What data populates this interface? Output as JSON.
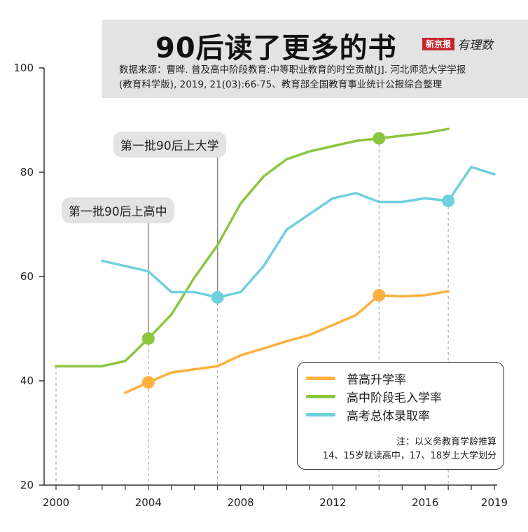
{
  "header": {
    "title": "90后读了更多的书",
    "source_line1": "数据来源：曹晔. 普及高中阶段教育:中等职业教育的时空贡献[J]. 河北师范大学学报",
    "source_line2": "(教育科学版), 2019, 21(03):66-75、教育部全国教育事业统计公报综合整理",
    "brand_red": "新京报",
    "brand_script": "有理数"
  },
  "callouts": {
    "university": "第一批90后上大学",
    "high_school": "第一批90后上高中"
  },
  "note": {
    "line1": "注：以义务教育学龄推算",
    "line2": "14、15岁就读高中，17、18岁上大学划分"
  },
  "colors": {
    "orange": "#fbb040",
    "green": "#8cc63f",
    "cyan": "#6fd0de",
    "axis": "#333333"
  },
  "chart_data": {
    "type": "line",
    "title": "90后读了更多的书",
    "xlabel": "",
    "ylabel": "",
    "xlim": [
      2000,
      2019
    ],
    "ylim": [
      20,
      100
    ],
    "x_ticks": [
      2000,
      2004,
      2008,
      2012,
      2016,
      2019
    ],
    "y_ticks": [
      20,
      40,
      60,
      80,
      100
    ],
    "series": [
      {
        "name": "普高升学率",
        "color": "#fbb040",
        "x": [
          2003,
          2004,
          2005,
          2006,
          2007,
          2008,
          2009,
          2010,
          2011,
          2012,
          2013,
          2014,
          2015,
          2016,
          2017
        ],
        "values": [
          37.7,
          39.7,
          41.6,
          42.2,
          42.8,
          44.9,
          46.2,
          47.6,
          48.8,
          50.7,
          52.6,
          56.4,
          56.2,
          56.4,
          57.2
        ],
        "highlights": [
          2004,
          2014
        ]
      },
      {
        "name": "高中阶段毛入学率",
        "color": "#8cc63f",
        "x": [
          2000,
          2001,
          2002,
          2003,
          2004,
          2005,
          2006,
          2007,
          2008,
          2009,
          2010,
          2011,
          2012,
          2013,
          2014,
          2015,
          2016,
          2017
        ],
        "values": [
          42.8,
          42.8,
          42.8,
          43.8,
          48.1,
          52.7,
          59.8,
          66.0,
          74.0,
          79.2,
          82.5,
          84.0,
          85.0,
          86.0,
          86.5,
          87.0,
          87.5,
          88.3
        ],
        "highlights": [
          2004,
          2014
        ]
      },
      {
        "name": "高考总体录取率",
        "color": "#6fd0de",
        "x": [
          2002,
          2003,
          2004,
          2005,
          2006,
          2007,
          2008,
          2009,
          2010,
          2011,
          2012,
          2013,
          2014,
          2015,
          2016,
          2017,
          2018,
          2019
        ],
        "values": [
          63.0,
          62.0,
          61.0,
          57.0,
          57.0,
          56.0,
          57.0,
          62.0,
          69.0,
          72.0,
          75.0,
          76.0,
          74.3,
          74.3,
          75.0,
          74.5,
          81.0,
          79.6
        ],
        "highlights": [
          2007,
          2017
        ]
      }
    ],
    "vertical_guides": [
      2000,
      2004,
      2007,
      2014,
      2017
    ],
    "legend_position": "bottom-right"
  }
}
